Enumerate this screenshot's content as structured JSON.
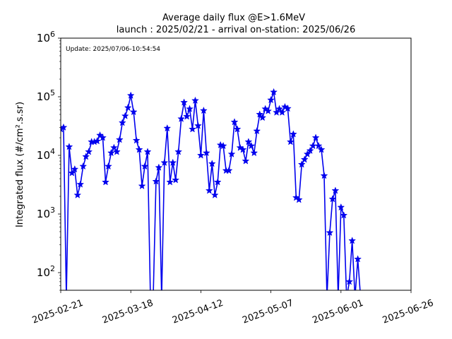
{
  "chart_data": {
    "type": "line",
    "title": "Average daily flux @E>1.6MeV",
    "subtitle": "launch : 2025/02/21 - arrival on-station: 2025/06/26",
    "update_label": "Update: 2025/07/06-10:54:54",
    "ylabel": "Integrated flux (#/cm².s.sr)",
    "xlabel": "",
    "yscale": "log",
    "ylim": [
      50,
      1000000
    ],
    "xlim": [
      "2025-02-21",
      "2025-06-26"
    ],
    "grid": false,
    "legend": "none",
    "x_ticks": [
      "2025-02-21",
      "2025-03-18",
      "2025-04-12",
      "2025-05-07",
      "2025-06-01",
      "2025-06-26"
    ],
    "y_ticks": [
      {
        "value": 100,
        "base": "10",
        "exp": "2"
      },
      {
        "value": 1000,
        "base": "10",
        "exp": "3"
      },
      {
        "value": 10000,
        "base": "10",
        "exp": "4"
      },
      {
        "value": 100000,
        "base": "10",
        "exp": "5"
      },
      {
        "value": 1000000,
        "base": "10",
        "exp": "6"
      }
    ],
    "series": [
      {
        "color": "#0000ee",
        "marker": "star",
        "points": [
          [
            "2025-02-21",
            28000
          ],
          [
            "2025-02-22",
            30000
          ],
          [
            "2025-02-23",
            null
          ],
          [
            "2025-02-24",
            14000
          ],
          [
            "2025-02-25",
            5000
          ],
          [
            "2025-02-26",
            5800
          ],
          [
            "2025-02-27",
            2100
          ],
          [
            "2025-02-28",
            3200
          ],
          [
            "2025-03-01",
            6500
          ],
          [
            "2025-03-02",
            9500
          ],
          [
            "2025-03-03",
            11500
          ],
          [
            "2025-03-04",
            17000
          ],
          [
            "2025-03-05",
            17000
          ],
          [
            "2025-03-06",
            17500
          ],
          [
            "2025-03-07",
            22000
          ],
          [
            "2025-03-08",
            20000
          ],
          [
            "2025-03-09",
            3500
          ],
          [
            "2025-03-10",
            6500
          ],
          [
            "2025-03-11",
            11000
          ],
          [
            "2025-03-12",
            13500
          ],
          [
            "2025-03-13",
            11500
          ],
          [
            "2025-03-14",
            18500
          ],
          [
            "2025-03-15",
            36000
          ],
          [
            "2025-03-16",
            47000
          ],
          [
            "2025-03-17",
            65000
          ],
          [
            "2025-03-18",
            105000
          ],
          [
            "2025-03-19",
            55000
          ],
          [
            "2025-03-20",
            18000
          ],
          [
            "2025-03-21",
            12500
          ],
          [
            "2025-03-22",
            3000
          ],
          [
            "2025-03-23",
            6500
          ],
          [
            "2025-03-24",
            11500
          ],
          [
            "2025-03-25",
            null
          ],
          [
            "2025-03-26",
            null
          ],
          [
            "2025-03-27",
            3600
          ],
          [
            "2025-03-28",
            6200
          ],
          [
            "2025-03-29",
            null
          ],
          [
            "2025-03-30",
            7500
          ],
          [
            "2025-03-31",
            29000
          ],
          [
            "2025-04-01",
            3500
          ],
          [
            "2025-04-02",
            7500
          ],
          [
            "2025-04-03",
            3800
          ],
          [
            "2025-04-04",
            11500
          ],
          [
            "2025-04-05",
            42000
          ],
          [
            "2025-04-06",
            80000
          ],
          [
            "2025-04-07",
            46000
          ],
          [
            "2025-04-08",
            62000
          ],
          [
            "2025-04-09",
            28000
          ],
          [
            "2025-04-10",
            86000
          ],
          [
            "2025-04-11",
            32000
          ],
          [
            "2025-04-12",
            10000
          ],
          [
            "2025-04-13",
            58000
          ],
          [
            "2025-04-14",
            11000
          ],
          [
            "2025-04-15",
            2500
          ],
          [
            "2025-04-16",
            7200
          ],
          [
            "2025-04-17",
            2100
          ],
          [
            "2025-04-18",
            3500
          ],
          [
            "2025-04-19",
            15000
          ],
          [
            "2025-04-20",
            14500
          ],
          [
            "2025-04-21",
            5500
          ],
          [
            "2025-04-22",
            5500
          ],
          [
            "2025-04-23",
            10500
          ],
          [
            "2025-04-24",
            37000
          ],
          [
            "2025-04-25",
            28000
          ],
          [
            "2025-04-26",
            13500
          ],
          [
            "2025-04-27",
            12500
          ],
          [
            "2025-04-28",
            8000
          ],
          [
            "2025-04-29",
            17000
          ],
          [
            "2025-04-30",
            14500
          ],
          [
            "2025-05-01",
            11000
          ],
          [
            "2025-05-02",
            26000
          ],
          [
            "2025-05-03",
            50000
          ],
          [
            "2025-05-04",
            44000
          ],
          [
            "2025-05-05",
            62000
          ],
          [
            "2025-05-06",
            57000
          ],
          [
            "2025-05-07",
            88000
          ],
          [
            "2025-05-08",
            120000
          ],
          [
            "2025-05-09",
            54000
          ],
          [
            "2025-05-10",
            62000
          ],
          [
            "2025-05-11",
            54000
          ],
          [
            "2025-05-12",
            67000
          ],
          [
            "2025-05-13",
            63000
          ],
          [
            "2025-05-14",
            17000
          ],
          [
            "2025-05-15",
            23000
          ],
          [
            "2025-05-16",
            1900
          ],
          [
            "2025-05-17",
            1750
          ],
          [
            "2025-05-18",
            7000
          ],
          [
            "2025-05-19",
            8500
          ],
          [
            "2025-05-20",
            10500
          ],
          [
            "2025-05-21",
            12000
          ],
          [
            "2025-05-22",
            14500
          ],
          [
            "2025-05-23",
            20000
          ],
          [
            "2025-05-24",
            14500
          ],
          [
            "2025-05-25",
            12500
          ],
          [
            "2025-05-26",
            4500
          ],
          [
            "2025-05-27",
            null
          ],
          [
            "2025-05-28",
            480
          ],
          [
            "2025-05-29",
            1800
          ],
          [
            "2025-05-30",
            2500
          ],
          [
            "2025-05-31",
            null
          ],
          [
            "2025-06-01",
            1300
          ],
          [
            "2025-06-02",
            950
          ],
          [
            "2025-06-03",
            null
          ],
          [
            "2025-06-04",
            70
          ],
          [
            "2025-06-05",
            350
          ],
          [
            "2025-06-06",
            null
          ],
          [
            "2025-06-07",
            170
          ],
          [
            "2025-06-08",
            null
          ]
        ]
      }
    ]
  }
}
